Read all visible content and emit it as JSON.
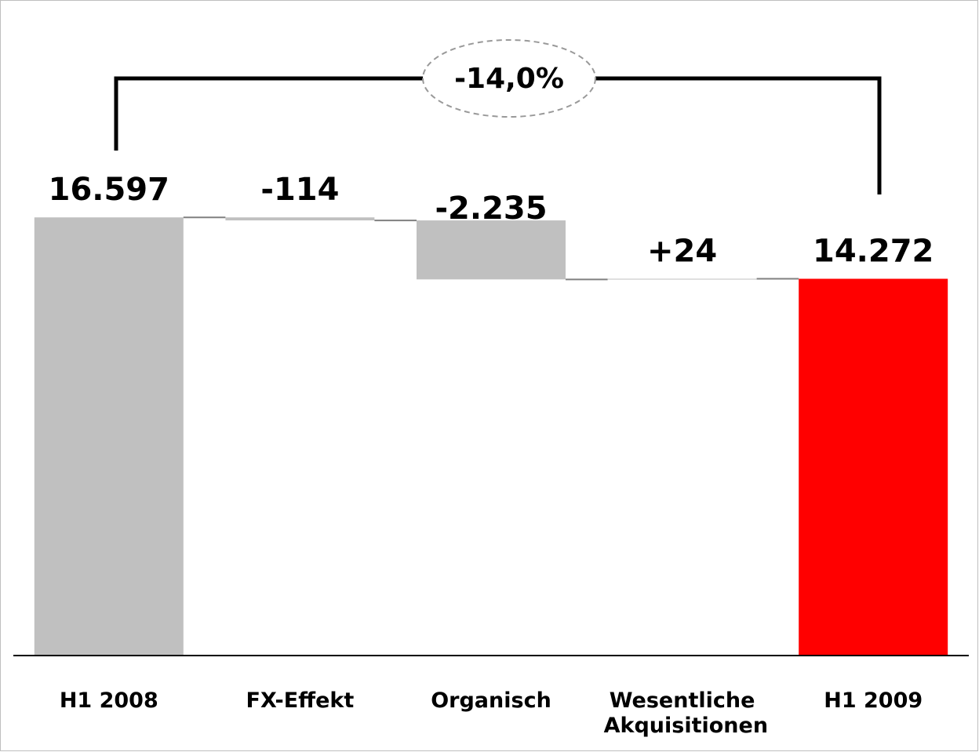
{
  "chart_data": {
    "type": "waterfall",
    "categories": [
      "H1 2008",
      "FX-Effekt",
      "Organisch",
      "Wesentliche Akquisitionen",
      "H1 2009"
    ],
    "values": [
      16597,
      -114,
      -2235,
      24,
      14272
    ],
    "value_labels": [
      "16.597",
      "-114",
      "-2.235",
      "+24",
      "14.272"
    ],
    "colors": [
      "#c0c0c0",
      "#c0c0c0",
      "#c0c0c0",
      "#c0c0c0",
      "#ff0000"
    ],
    "annotation": "-14,0%",
    "ylim": [
      0,
      18000
    ]
  }
}
